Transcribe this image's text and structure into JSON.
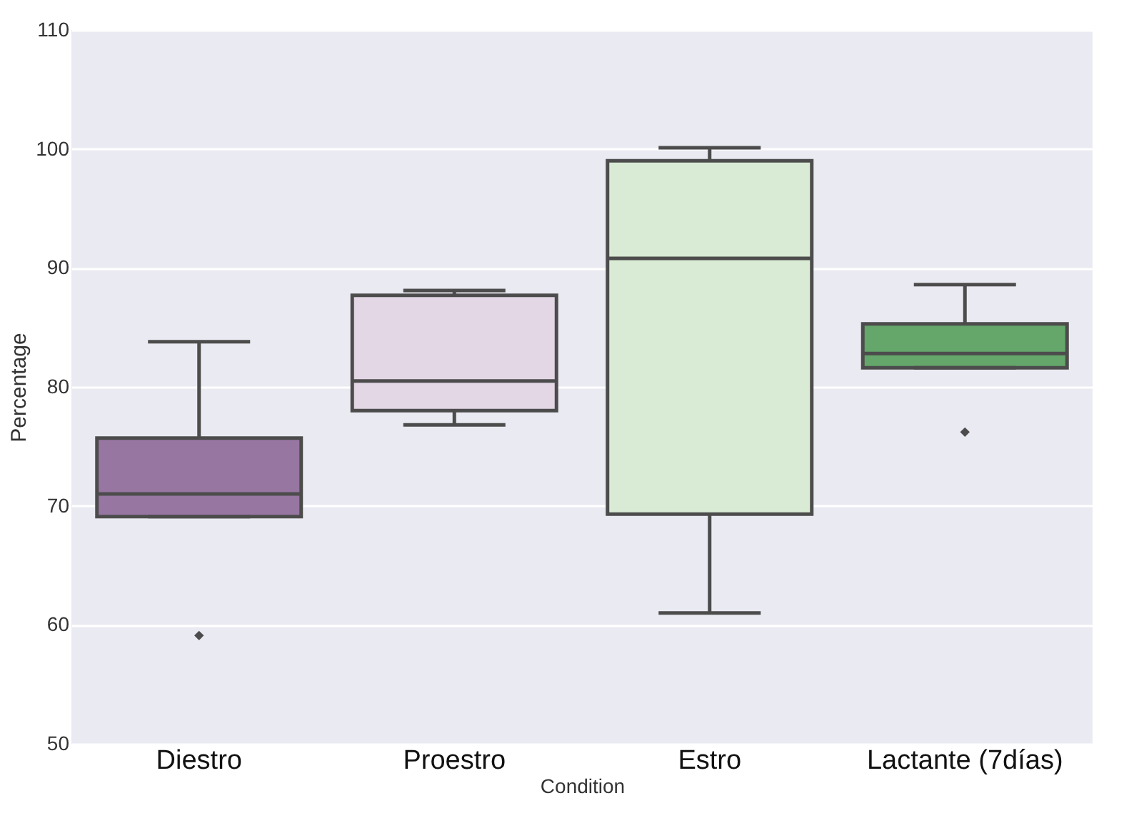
{
  "chart_data": {
    "type": "box",
    "xlabel": "Condition",
    "ylabel": "Percentage",
    "categories": [
      "Diestro",
      "Proestro",
      "Estro",
      "Lactante (7días)"
    ],
    "colors": [
      "#9776a2",
      "#e3d7e6",
      "#d9ebd5",
      "#65a66b"
    ],
    "boxes": [
      {
        "low": 69.1,
        "q1": 69.1,
        "median": 71.0,
        "q3": 75.7,
        "high": 83.8,
        "outliers": [
          59.1
        ]
      },
      {
        "low": 76.8,
        "q1": 78.0,
        "median": 80.5,
        "q3": 87.7,
        "high": 88.1
      },
      {
        "low": 61.0,
        "q1": 69.3,
        "median": 90.8,
        "q3": 99.0,
        "high": 100.1
      },
      {
        "low": 81.6,
        "q1": 81.6,
        "median": 82.8,
        "q3": 85.3,
        "high": 88.6,
        "outliers": [
          76.2
        ]
      }
    ],
    "ylim": [
      50,
      110
    ],
    "yticks": [
      50,
      60,
      70,
      80,
      90,
      100,
      110
    ],
    "grid": "y"
  }
}
